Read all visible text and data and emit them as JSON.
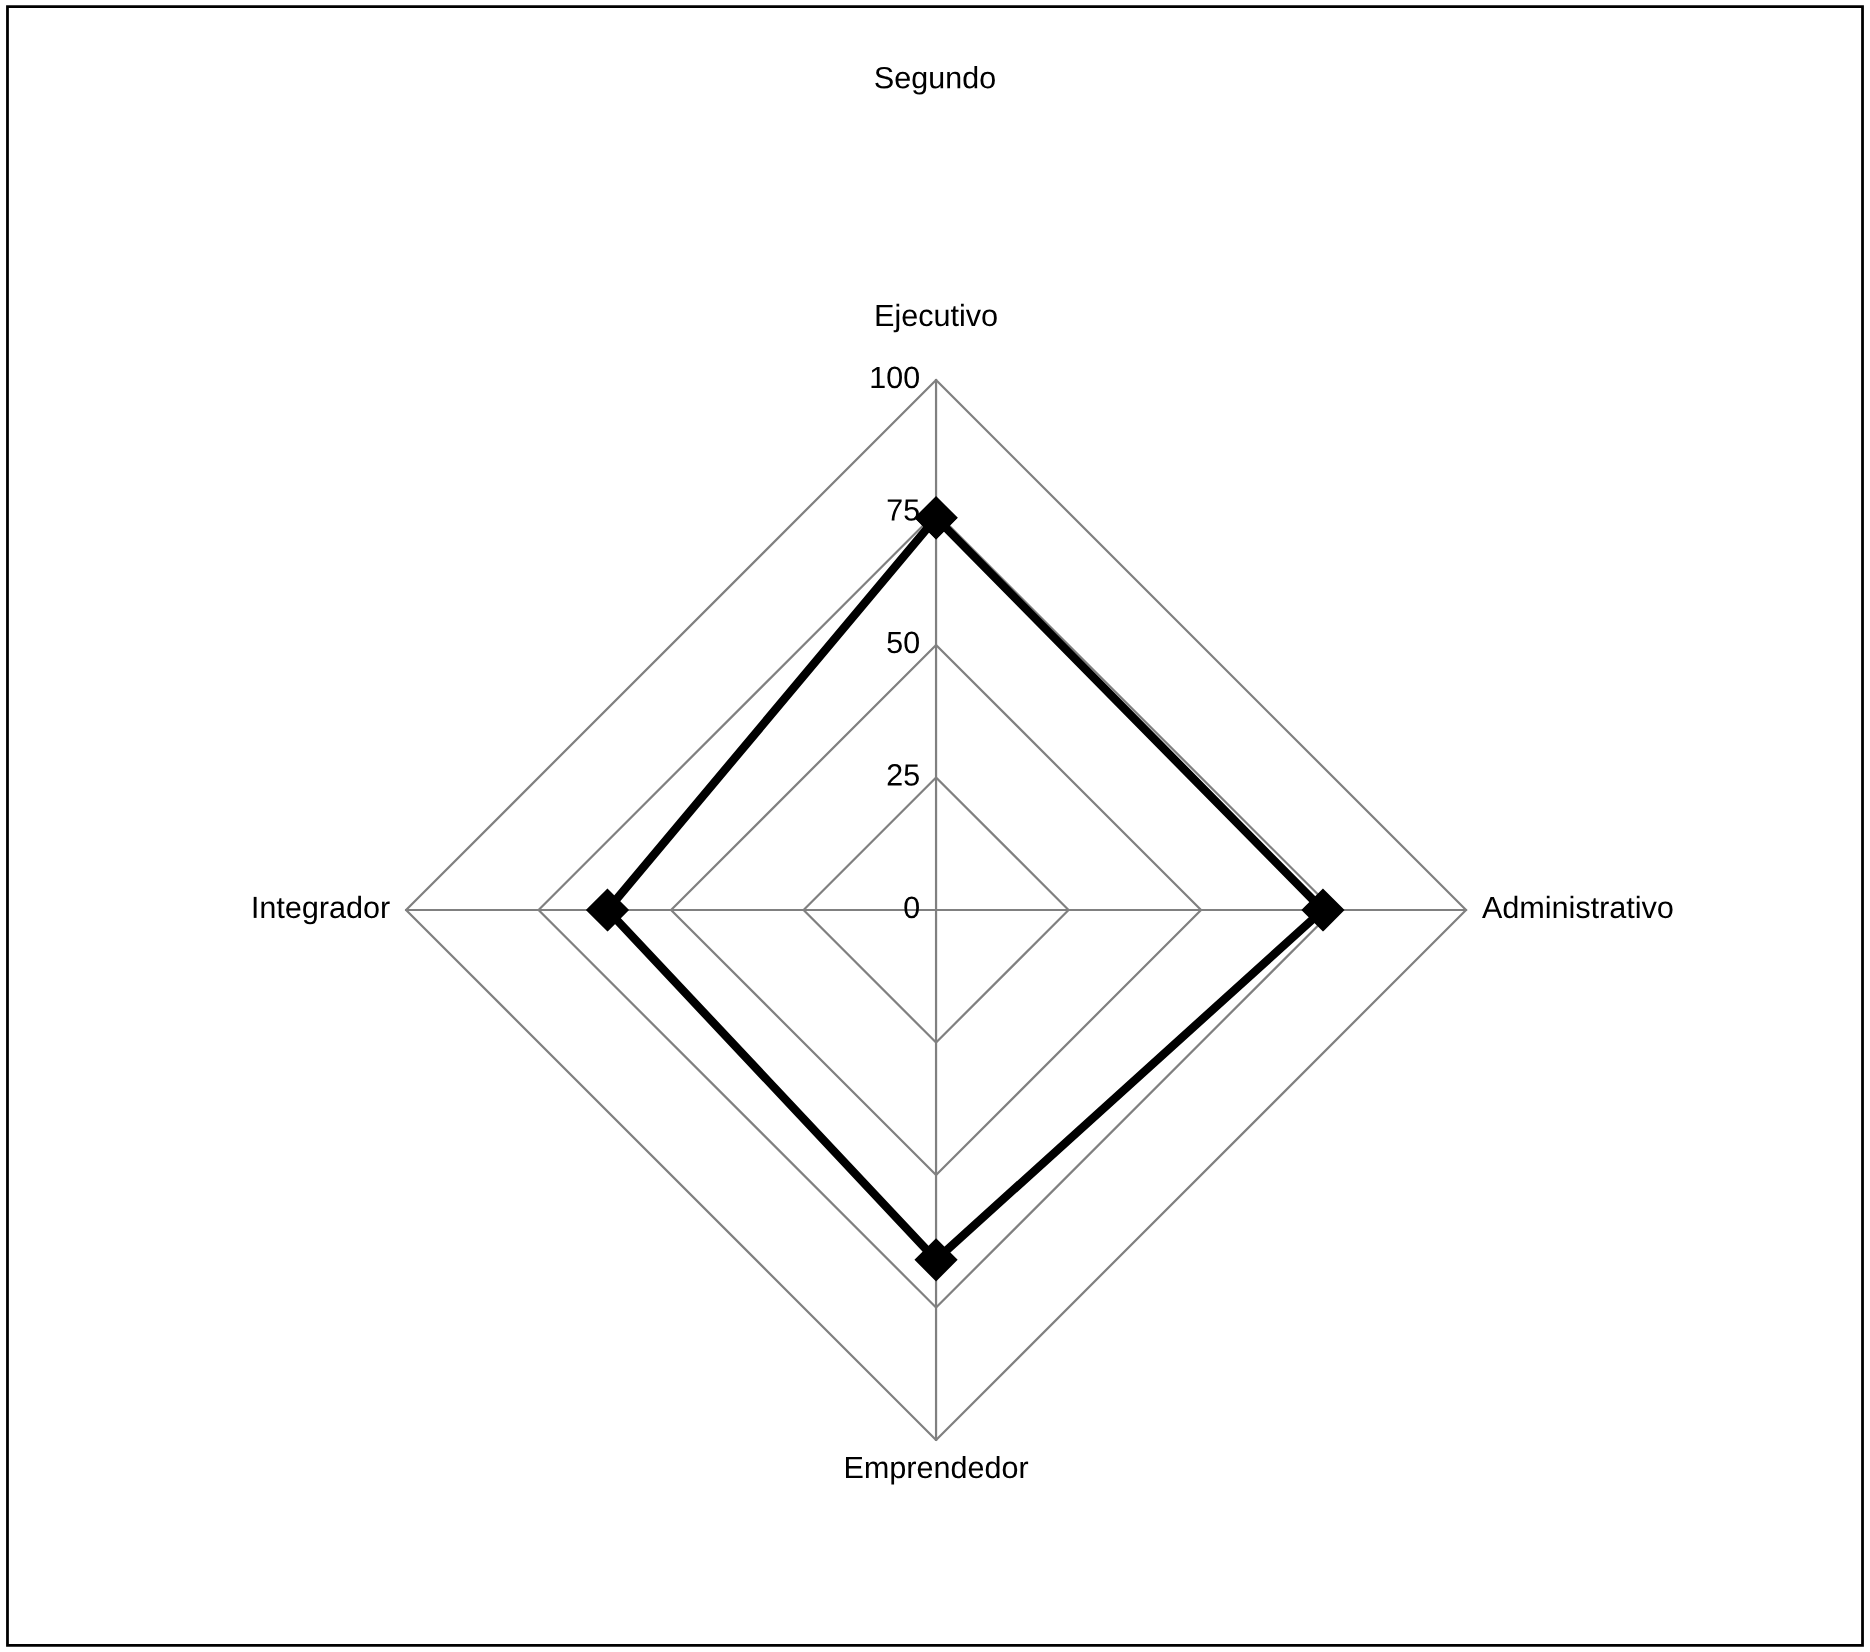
{
  "chart_data": {
    "type": "radar",
    "title": "Segundo",
    "categories": [
      "Ejecutivo",
      "Administrativo",
      "Emprendedor",
      "Integrador"
    ],
    "series": [
      {
        "color": "#000000",
        "values": [
          74,
          73,
          66,
          62
        ]
      }
    ],
    "ylim": [
      0,
      100
    ],
    "yticks": [
      0,
      25,
      50,
      75,
      100
    ],
    "grid": true,
    "marker": "diamond",
    "line_style": "solid",
    "legend": false
  }
}
